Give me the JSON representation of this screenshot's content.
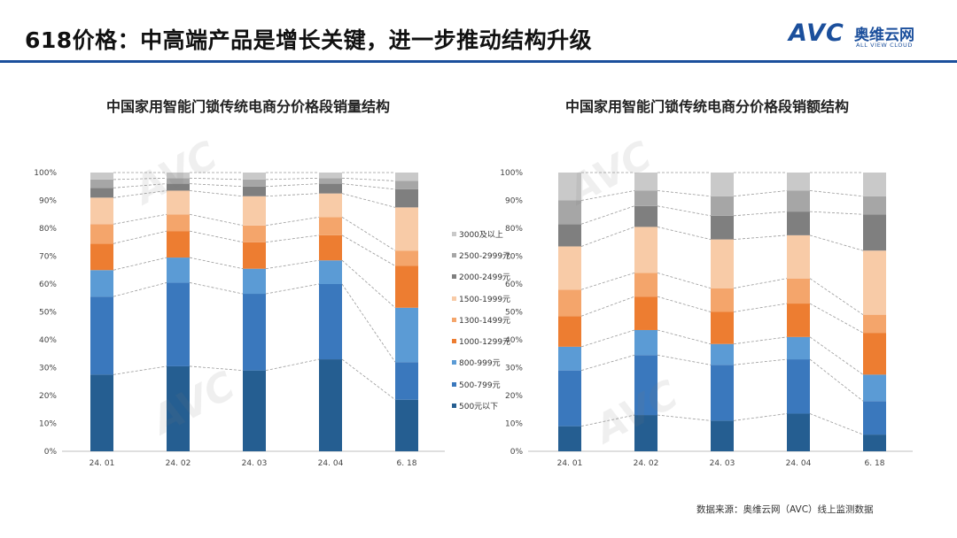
{
  "header": {
    "title": "618价格：中高端产品是增长关键，进一步推动结构升级",
    "logo_mark": "AVC",
    "logo_cn": "奥维云网",
    "logo_en": "ALL VIEW CLOUD"
  },
  "source": "数据来源：奥维云网（AVC）线上监测数据",
  "colors": {
    "brand": "#1b4f9c",
    "segments": [
      "#255e91",
      "#3a78bd",
      "#5b9bd5",
      "#ed7d31",
      "#f4a56b",
      "#f8cba7",
      "#7f7f7f",
      "#a6a6a6",
      "#c9c9c9"
    ]
  },
  "chart_data": [
    {
      "type": "bar",
      "stacked": true,
      "title": "中国家用智能门锁传统电商分价格段销量结构",
      "categories": [
        "24. 01",
        "24. 02",
        "24. 03",
        "24. 04",
        "6. 18"
      ],
      "ylim": [
        0,
        100
      ],
      "yticks": [
        "0%",
        "10%",
        "20%",
        "30%",
        "40%",
        "50%",
        "60%",
        "70%",
        "80%",
        "90%",
        "100%"
      ],
      "grid": false,
      "connector_lines": true,
      "legend_position": "right",
      "series": [
        {
          "name": "500元以下",
          "values": [
            27.5,
            30.5,
            29.0,
            33.0,
            18.5
          ]
        },
        {
          "name": "500-799元",
          "values": [
            28.0,
            30.0,
            27.5,
            27.0,
            13.5
          ]
        },
        {
          "name": "800-999元",
          "values": [
            9.5,
            9.0,
            9.0,
            8.5,
            19.5
          ]
        },
        {
          "name": "1000-1299元",
          "values": [
            9.5,
            9.5,
            9.5,
            9.0,
            15.0
          ]
        },
        {
          "name": "1300-1499元",
          "values": [
            7.0,
            6.0,
            6.0,
            6.5,
            5.5
          ]
        },
        {
          "name": "1500-1999元",
          "values": [
            9.5,
            8.5,
            10.5,
            8.5,
            15.5
          ]
        },
        {
          "name": "2000-2499元",
          "values": [
            3.5,
            2.5,
            3.5,
            3.5,
            6.5
          ]
        },
        {
          "name": "2500-2999元",
          "values": [
            3.0,
            2.0,
            2.5,
            2.0,
            3.0
          ]
        },
        {
          "name": "3000及以上",
          "values": [
            2.5,
            2.0,
            2.5,
            2.0,
            3.0
          ]
        }
      ]
    },
    {
      "type": "bar",
      "stacked": true,
      "title": "中国家用智能门锁传统电商分价格段销额结构",
      "categories": [
        "24. 01",
        "24. 02",
        "24. 03",
        "24. 04",
        "6. 18"
      ],
      "ylim": [
        0,
        100
      ],
      "yticks": [
        "0%",
        "10%",
        "20%",
        "30%",
        "40%",
        "50%",
        "60%",
        "70%",
        "80%",
        "90%",
        "100%"
      ],
      "grid": false,
      "connector_lines": true,
      "series": [
        {
          "name": "500元以下",
          "values": [
            9.0,
            13.0,
            11.0,
            13.5,
            6.0
          ]
        },
        {
          "name": "500-799元",
          "values": [
            20.0,
            21.5,
            20.0,
            19.5,
            12.0
          ]
        },
        {
          "name": "800-999元",
          "values": [
            8.5,
            9.0,
            7.5,
            8.0,
            9.5
          ]
        },
        {
          "name": "1000-1299元",
          "values": [
            11.0,
            12.0,
            11.5,
            12.0,
            15.0
          ]
        },
        {
          "name": "1300-1499元",
          "values": [
            9.5,
            8.5,
            8.5,
            9.0,
            6.5
          ]
        },
        {
          "name": "1500-1999元",
          "values": [
            15.5,
            16.5,
            17.5,
            15.5,
            23.0
          ]
        },
        {
          "name": "2000-2499元",
          "values": [
            8.0,
            7.5,
            8.5,
            8.5,
            13.0
          ]
        },
        {
          "name": "2500-2999元",
          "values": [
            8.5,
            5.5,
            7.0,
            7.5,
            6.5
          ]
        },
        {
          "name": "3000及以上",
          "values": [
            10.0,
            6.5,
            8.5,
            6.5,
            8.5
          ]
        }
      ]
    }
  ]
}
